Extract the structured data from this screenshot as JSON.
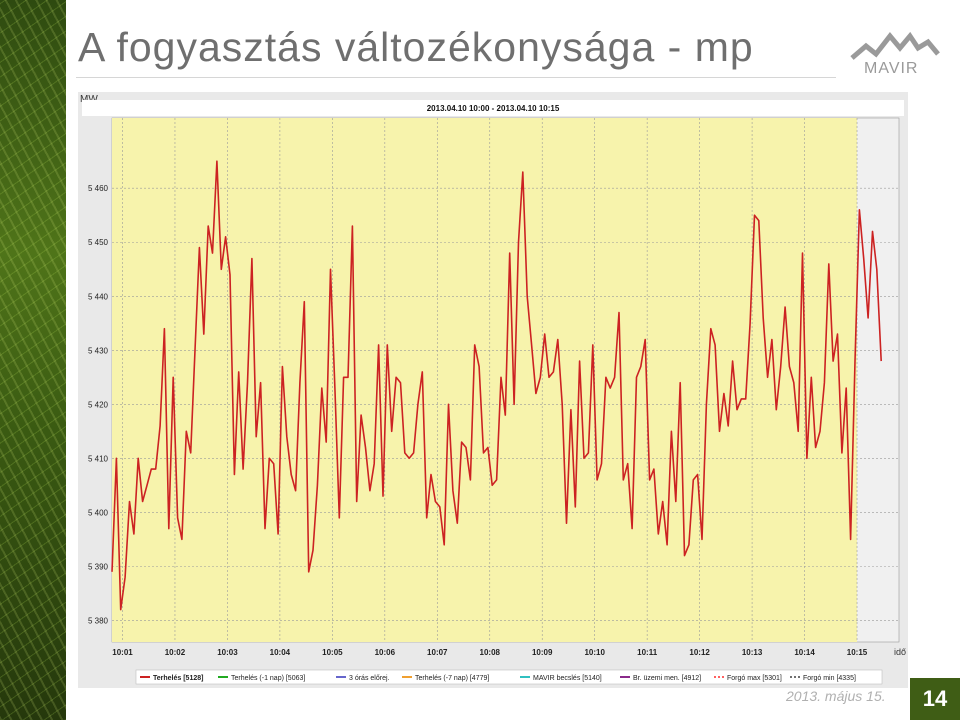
{
  "slide": {
    "title": "A fogyasztás változékonysága - mp",
    "logo_text": "MAVIR",
    "date": "2013. május 15.",
    "page_number": "14",
    "accent_color": "#3f5d15"
  },
  "chart_data": {
    "type": "line",
    "title": "2013.04.10 10:00 - 2013.04.10 10:15",
    "ylabel": "MW",
    "xlabel": "idő",
    "ylim": [
      5376,
      5473
    ],
    "ytick_values": [
      5380,
      5390,
      5400,
      5410,
      5420,
      5430,
      5440,
      5450,
      5460
    ],
    "ytick_labels": [
      "5 380",
      "5 390",
      "5 400",
      "5 410",
      "5 420",
      "5 430",
      "5 440",
      "5 450",
      "5 460"
    ],
    "xtick_labels": [
      "10:01",
      "10:02",
      "10:03",
      "10:04",
      "10:05",
      "10:06",
      "10:07",
      "10:08",
      "10:09",
      "10:10",
      "10:11",
      "10:12",
      "10:13",
      "10:14",
      "10:15"
    ],
    "x_range_min": [
      0.8,
      15.8
    ],
    "highlight_range_min": [
      0.8,
      15.0
    ],
    "grid": true,
    "legend_position": "bottom",
    "colors": {
      "highlight": "#f7f3ac",
      "plot_bg": "#f0f0f0",
      "grid": "#9a9a9a"
    },
    "legend": [
      {
        "label": "Terhelés  [5128]",
        "color": "#cc2222",
        "style": "solid"
      },
      {
        "label": "Terhelés  (-1 nap)  [5063]",
        "color": "#22aa22",
        "style": "solid"
      },
      {
        "label": "3 órás előrej.",
        "color": "#6666cc",
        "style": "solid"
      },
      {
        "label": "Terhelés  (-7 nap)  [4779]",
        "color": "#f0a030",
        "style": "solid"
      },
      {
        "label": "MAVIR becslés  [5140]",
        "color": "#30c0c0",
        "style": "solid"
      },
      {
        "label": "Br. üzemi men.  [4912]",
        "color": "#8a2a8a",
        "style": "solid"
      },
      {
        "label": "Forgó max  [5301]",
        "color": "#ff6060",
        "style": "dotted"
      },
      {
        "label": "Forgó min  [4335]",
        "color": "#707070",
        "style": "dotted"
      }
    ],
    "series": [
      {
        "name": "Terhelés  [5128]",
        "color": "#cc2222",
        "x_step_min": 0.0833,
        "values": [
          5389,
          5410,
          5382,
          5388,
          5402,
          5396,
          5410,
          5402,
          5405,
          5408,
          5408,
          5416,
          5434,
          5397,
          5425,
          5399,
          5395,
          5415,
          5411,
          5430,
          5449,
          5433,
          5453,
          5448,
          5465,
          5445,
          5451,
          5444,
          5407,
          5426,
          5408,
          5424,
          5447,
          5414,
          5424,
          5397,
          5410,
          5409,
          5396,
          5427,
          5414,
          5407,
          5404,
          5424,
          5439,
          5389,
          5393,
          5405,
          5423,
          5413,
          5445,
          5423,
          5399,
          5425,
          5425,
          5453,
          5402,
          5418,
          5412,
          5404,
          5409,
          5431,
          5403,
          5431,
          5415,
          5425,
          5424,
          5411,
          5410,
          5411,
          5420,
          5426,
          5399,
          5407,
          5402,
          5401,
          5394,
          5420,
          5404,
          5398,
          5413,
          5412,
          5406,
          5431,
          5427,
          5411,
          5412,
          5405,
          5406,
          5425,
          5418,
          5448,
          5420,
          5450,
          5463,
          5440,
          5431,
          5422,
          5425,
          5433,
          5425,
          5426,
          5432,
          5420,
          5398,
          5419,
          5401,
          5428,
          5410,
          5411,
          5431,
          5406,
          5409,
          5425,
          5423,
          5425,
          5437,
          5406,
          5409,
          5397,
          5425,
          5427,
          5432,
          5406,
          5408,
          5396,
          5402,
          5394,
          5415,
          5402,
          5424,
          5392,
          5394,
          5406,
          5407,
          5395,
          5420,
          5434,
          5431,
          5415,
          5422,
          5416,
          5428,
          5419,
          5421,
          5421,
          5435,
          5455,
          5454,
          5436,
          5425,
          5432,
          5419,
          5427,
          5438,
          5427,
          5424,
          5415,
          5448,
          5410,
          5425,
          5412,
          5415,
          5424,
          5446,
          5428,
          5433,
          5411,
          5423,
          5395,
          5428,
          5456,
          5447,
          5436,
          5452,
          5445,
          5428
        ]
      }
    ]
  }
}
